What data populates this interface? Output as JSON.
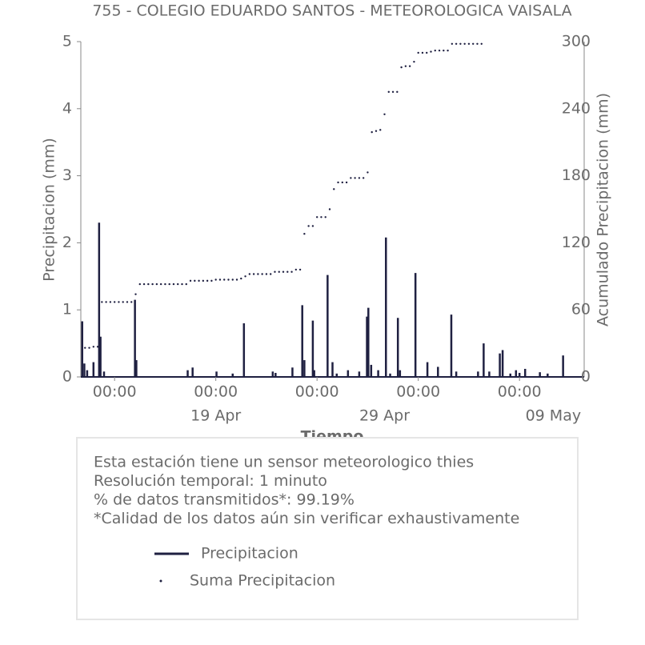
{
  "chart_data": {
    "type": "line",
    "title": "755 - COLEGIO EDUARDO SANTOS - METEOROLOGICA VAISALA",
    "x_label": "Tiempo",
    "y_label": "Precipitacion (mm)",
    "y2_label": "Acumulado Precipitacion (mm)",
    "xlim": [
      "Apr 11 00:00",
      "May 10 20:00"
    ],
    "xticks": [
      {
        "value": "Apr 13 00:00",
        "label": "00:00"
      },
      {
        "value": "Apr 19 00:00",
        "label": "00:00"
      },
      {
        "value": "Apr 25 00:00",
        "label": "00:00"
      },
      {
        "value": "May 1 00:00",
        "label": "00:00"
      },
      {
        "value": "May 7 00:00",
        "label": "00:00"
      }
    ],
    "xticks_secondary": [
      {
        "value": "Apr 19 00:00",
        "label": "19 Apr"
      },
      {
        "value": "Apr 29 00:00",
        "label": "29 Apr"
      },
      {
        "value": "May 9 00:00",
        "label": "09 May"
      }
    ],
    "ylim": [
      0,
      5
    ],
    "yticks": [
      0,
      1,
      2,
      3,
      4,
      5
    ],
    "y2lim": [
      0,
      300
    ],
    "y2ticks": [
      0,
      60,
      120,
      180,
      240,
      300
    ],
    "series": [
      {
        "name": "Precipitacion",
        "color": "#1f2041",
        "mode": "lines",
        "x": [
          "Apr 11 02:00",
          "Apr 11 05:00",
          "Apr 11 09:00",
          "Apr 11 18:00",
          "Apr 12 02:00",
          "Apr 12 04:00",
          "Apr 12 09:00",
          "Apr 14 05:00",
          "Apr 14 07:00",
          "Apr 17 08:00",
          "Apr 17 15:00",
          "Apr 19 01:00",
          "Apr 20 00:00",
          "Apr 20 16:00",
          "Apr 22 09:00",
          "Apr 22 13:00",
          "Apr 23 13:00",
          "Apr 24 03:00",
          "Apr 24 06:00",
          "Apr 24 18:00",
          "Apr 24 20:00",
          "Apr 25 15:00",
          "Apr 25 22:00",
          "Apr 26 04:00",
          "Apr 26 20:00",
          "Apr 27 12:00",
          "Apr 27 23:00",
          "Apr 28 01:00",
          "Apr 28 05:00",
          "Apr 28 15:00",
          "Apr 29 02:00",
          "Apr 29 08:00",
          "Apr 29 19:00",
          "Apr 29 22:00",
          "Apr 30 20:00",
          "May 1 13:00",
          "May 2 04:00",
          "May 2 23:00",
          "May 3 06:00",
          "May 4 13:00",
          "May 4 21:00",
          "May 5 05:00",
          "May 5 20:00",
          "May 6 00:00",
          "May 6 11:00",
          "May 6 19:00",
          "May 7 00:00",
          "May 7 08:00",
          "May 8 05:00",
          "May 8 16:00",
          "May 9 14:00"
        ],
        "values": [
          0.83,
          0.2,
          0.1,
          0.22,
          2.3,
          0.6,
          0.08,
          1.15,
          0.25,
          0.1,
          0.14,
          0.08,
          0.05,
          0.8,
          0.08,
          0.06,
          0.14,
          1.07,
          0.25,
          0.84,
          0.1,
          1.52,
          0.22,
          0.05,
          0.1,
          0.08,
          0.9,
          1.03,
          0.18,
          0.1,
          2.08,
          0.05,
          0.88,
          0.1,
          1.55,
          0.22,
          0.15,
          0.93,
          0.08,
          0.08,
          0.5,
          0.08,
          0.35,
          0.4,
          0.05,
          0.1,
          0.06,
          0.12,
          0.07,
          0.05,
          0.32
        ]
      },
      {
        "name": "Suma Precipitacion",
        "color": "#1f2041",
        "mode": "markers",
        "axis": "y2",
        "x": [
          "Apr 11 06:00",
          "Apr 11 12:00",
          "Apr 11 18:00",
          "Apr 12 00:00",
          "Apr 12 06:00",
          "Apr 12 12:00",
          "Apr 12 18:00",
          "Apr 13 00:00",
          "Apr 13 06:00",
          "Apr 13 12:00",
          "Apr 13 18:00",
          "Apr 14 00:00",
          "Apr 14 06:00",
          "Apr 14 12:00",
          "Apr 14 18:00",
          "Apr 15 00:00",
          "Apr 15 06:00",
          "Apr 15 12:00",
          "Apr 15 18:00",
          "Apr 16 00:00",
          "Apr 16 06:00",
          "Apr 16 12:00",
          "Apr 16 18:00",
          "Apr 17 00:00",
          "Apr 17 06:00",
          "Apr 17 12:00",
          "Apr 17 18:00",
          "Apr 18 00:00",
          "Apr 18 06:00",
          "Apr 18 12:00",
          "Apr 18 18:00",
          "Apr 19 00:00",
          "Apr 19 06:00",
          "Apr 19 12:00",
          "Apr 19 18:00",
          "Apr 20 00:00",
          "Apr 20 06:00",
          "Apr 20 12:00",
          "Apr 20 18:00",
          "Apr 21 00:00",
          "Apr 21 06:00",
          "Apr 21 12:00",
          "Apr 21 18:00",
          "Apr 22 00:00",
          "Apr 22 06:00",
          "Apr 22 12:00",
          "Apr 22 18:00",
          "Apr 23 00:00",
          "Apr 23 06:00",
          "Apr 23 12:00",
          "Apr 23 18:00",
          "Apr 24 00:00",
          "Apr 24 06:00",
          "Apr 24 12:00",
          "Apr 24 18:00",
          "Apr 25 00:00",
          "Apr 25 06:00",
          "Apr 25 12:00",
          "Apr 25 18:00",
          "Apr 26 00:00",
          "Apr 26 06:00",
          "Apr 26 12:00",
          "Apr 26 18:00",
          "Apr 27 00:00",
          "Apr 27 06:00",
          "Apr 27 12:00",
          "Apr 27 18:00",
          "Apr 28 00:00",
          "Apr 28 06:00",
          "Apr 28 12:00",
          "Apr 28 18:00",
          "Apr 29 00:00",
          "Apr 29 06:00",
          "Apr 29 12:00",
          "Apr 29 18:00",
          "Apr 30 00:00",
          "Apr 30 06:00",
          "Apr 30 12:00",
          "Apr 30 18:00",
          "May 1 00:00",
          "May 1 06:00",
          "May 1 12:00",
          "May 1 18:00",
          "May 2 00:00",
          "May 2 06:00",
          "May 2 12:00",
          "May 2 18:00",
          "May 3 00:00",
          "May 3 06:00",
          "May 3 12:00",
          "May 3 18:00",
          "May 4 00:00",
          "May 4 06:00",
          "May 4 12:00",
          "May 4 18:00"
        ],
        "values": [
          26,
          26,
          27,
          27,
          67,
          67,
          67,
          67,
          67,
          67,
          67,
          67,
          74,
          83,
          83,
          83,
          83,
          83,
          83,
          83,
          83,
          83,
          83,
          83,
          83,
          86,
          86,
          86,
          86,
          86,
          86,
          87,
          87,
          87,
          87,
          87,
          87,
          88,
          90,
          92,
          92,
          92,
          92,
          92,
          92,
          94,
          94,
          94,
          94,
          94,
          96,
          96,
          128,
          135,
          135,
          143,
          143,
          143,
          150,
          168,
          174,
          174,
          174,
          178,
          178,
          178,
          178,
          183,
          219,
          220,
          221,
          235,
          255,
          255,
          255,
          277,
          278,
          278,
          282,
          290,
          290,
          290,
          291,
          292,
          292,
          292,
          292,
          298,
          298,
          298,
          298,
          298,
          298,
          298,
          298
        ]
      }
    ],
    "notes": [
      "Esta estación tiene un sensor meteorologico thies",
      "Resolución temporal: 1 minuto",
      "% de datos transmitidos*: 99.19%",
      "*Calidad de los datos aún sin verificar exhaustivamente"
    ]
  }
}
